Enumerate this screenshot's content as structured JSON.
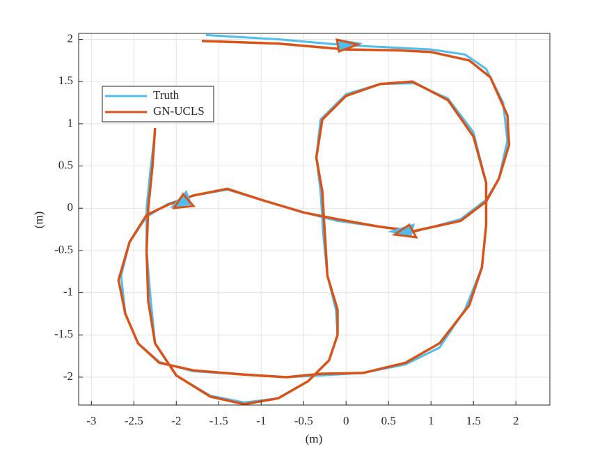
{
  "chart_data": {
    "type": "line",
    "xlabel": "(m)",
    "ylabel": "(m)",
    "xlim": [
      -3.15,
      2.4
    ],
    "ylim": [
      -2.33,
      2.07
    ],
    "xticks": [
      -3,
      -2.5,
      -2,
      -1.5,
      -1,
      -0.5,
      0,
      0.5,
      1,
      1.5,
      2
    ],
    "yticks": [
      -2,
      -1.5,
      -1,
      -0.5,
      0,
      0.5,
      1,
      1.5,
      2
    ],
    "grid": true,
    "legend": "upper left",
    "series": [
      {
        "name": "Truth",
        "color": "#4dbeee",
        "x": [
          -1.65,
          -0.8,
          0.0,
          0.6,
          1.0,
          1.4,
          1.65,
          1.85,
          1.9,
          1.8,
          1.65,
          1.35,
          0.8,
          0.4,
          -0.1,
          -0.5,
          -1.0,
          -1.4,
          -1.8,
          -2.1,
          -2.35,
          -2.55,
          -2.65,
          -2.6,
          -2.45,
          -2.2,
          -1.8,
          -1.2,
          -0.7,
          -0.3,
          0.2,
          0.7,
          1.1,
          1.4,
          1.6,
          1.65,
          1.65,
          1.5,
          1.2,
          0.8,
          0.4,
          0.0,
          -0.3,
          -0.35,
          -0.3,
          -0.27,
          -0.22,
          -0.12,
          -0.1,
          -0.2,
          -0.45,
          -0.8,
          -1.2,
          -1.6,
          -2.0,
          -2.25,
          -2.3,
          -2.35,
          -2.35,
          -2.3,
          -2.25
        ],
        "values": [
          2.05,
          2.0,
          1.93,
          1.9,
          1.88,
          1.82,
          1.65,
          1.25,
          0.8,
          0.35,
          0.1,
          -0.13,
          -0.28,
          -0.22,
          -0.15,
          -0.05,
          0.1,
          0.22,
          0.15,
          0.05,
          -0.1,
          -0.4,
          -0.8,
          -1.25,
          -1.6,
          -1.82,
          -1.93,
          -1.97,
          -2.0,
          -1.98,
          -1.95,
          -1.85,
          -1.65,
          -1.2,
          -0.7,
          -0.2,
          0.3,
          0.9,
          1.3,
          1.48,
          1.47,
          1.35,
          1.05,
          0.6,
          0.2,
          -0.3,
          -0.8,
          -1.2,
          -1.5,
          -1.8,
          -2.05,
          -2.25,
          -2.3,
          -2.22,
          -1.98,
          -1.6,
          -1.1,
          -0.5,
          0.0,
          0.5,
          0.9
        ]
      },
      {
        "name": "GN-UCLS",
        "color": "#d95319",
        "x": [
          -1.7,
          -0.8,
          0.0,
          0.6,
          1.0,
          1.45,
          1.7,
          1.9,
          1.92,
          1.8,
          1.65,
          1.35,
          0.8,
          0.4,
          -0.1,
          -0.5,
          -1.0,
          -1.4,
          -1.8,
          -2.1,
          -2.35,
          -2.55,
          -2.68,
          -2.6,
          -2.45,
          -2.2,
          -1.8,
          -1.2,
          -0.7,
          -0.3,
          0.2,
          0.7,
          1.1,
          1.45,
          1.6,
          1.65,
          1.65,
          1.5,
          1.2,
          0.78,
          0.4,
          0.0,
          -0.28,
          -0.35,
          -0.28,
          -0.25,
          -0.22,
          -0.1,
          -0.1,
          -0.2,
          -0.45,
          -0.8,
          -1.2,
          -1.6,
          -2.0,
          -2.25,
          -2.33,
          -2.35,
          -2.33,
          -2.28,
          -2.25
        ],
        "values": [
          1.98,
          1.95,
          1.88,
          1.87,
          1.85,
          1.75,
          1.55,
          1.1,
          0.75,
          0.35,
          0.08,
          -0.15,
          -0.27,
          -0.22,
          -0.13,
          -0.05,
          0.1,
          0.23,
          0.15,
          0.04,
          -0.08,
          -0.4,
          -0.85,
          -1.25,
          -1.6,
          -1.83,
          -1.92,
          -1.97,
          -2.0,
          -1.96,
          -1.95,
          -1.83,
          -1.6,
          -1.15,
          -0.7,
          -0.2,
          0.3,
          0.85,
          1.28,
          1.5,
          1.47,
          1.33,
          1.05,
          0.6,
          0.2,
          -0.3,
          -0.8,
          -1.2,
          -1.5,
          -1.8,
          -2.05,
          -2.25,
          -2.32,
          -2.23,
          -1.98,
          -1.6,
          -1.1,
          -0.5,
          0.0,
          0.5,
          0.95
        ]
      }
    ]
  }
}
